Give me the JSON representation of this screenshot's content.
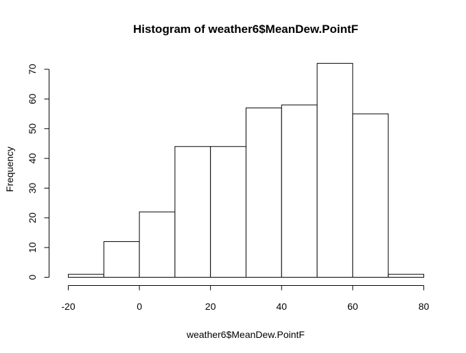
{
  "chart_data": {
    "type": "bar",
    "subtype": "histogram",
    "title": "Histogram of weather6$MeanDew.PointF",
    "xlabel": "weather6$MeanDew.PointF",
    "ylabel": "Frequency",
    "bins": [
      {
        "from": -20,
        "to": -10,
        "count": 1
      },
      {
        "from": -10,
        "to": 0,
        "count": 12
      },
      {
        "from": 0,
        "to": 10,
        "count": 22
      },
      {
        "from": 10,
        "to": 20,
        "count": 44
      },
      {
        "from": 20,
        "to": 30,
        "count": 44
      },
      {
        "from": 30,
        "to": 40,
        "count": 57
      },
      {
        "from": 40,
        "to": 50,
        "count": 58
      },
      {
        "from": 50,
        "to": 60,
        "count": 72
      },
      {
        "from": 60,
        "to": 70,
        "count": 55
      },
      {
        "from": 70,
        "to": 80,
        "count": 1
      }
    ],
    "xlim": [
      -20,
      80
    ],
    "ylim": [
      0,
      70
    ],
    "x_ticks": [
      -20,
      0,
      20,
      40,
      60,
      80
    ],
    "y_ticks": [
      0,
      10,
      20,
      30,
      40,
      50,
      60,
      70
    ],
    "grid": false,
    "colors": {
      "bar_fill": "#ffffff",
      "bar_stroke": "#000000"
    }
  }
}
